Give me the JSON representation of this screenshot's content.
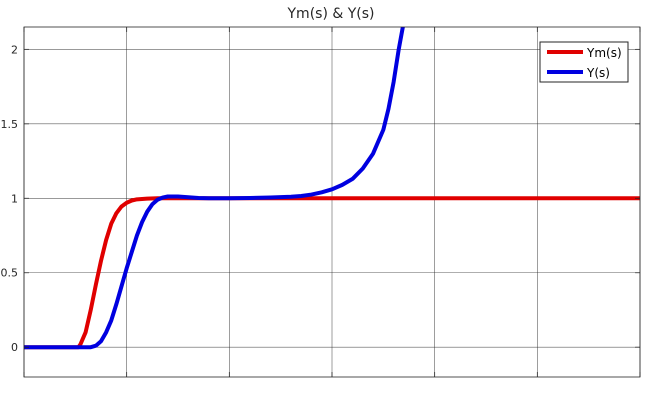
{
  "chart_data": {
    "type": "line",
    "title": "Ym(s) & Y(s)",
    "xlabel": "",
    "ylabel": "",
    "xlim": [
      0,
      6
    ],
    "ylim": [
      -0.2,
      2.15
    ],
    "grid": true,
    "legend_position": "top-right",
    "xticks": [
      0,
      1,
      2,
      3,
      4,
      5,
      6
    ],
    "yticks": [
      0,
      0.5,
      1,
      1.5,
      2
    ],
    "ytick_labels": [
      "0",
      "0.5",
      "1",
      "1.5",
      "2"
    ],
    "series": [
      {
        "name": "Ym(s)",
        "color": "#e00000",
        "points": [
          [
            0.0,
            0.0
          ],
          [
            0.3,
            0.0
          ],
          [
            0.53,
            0.0
          ],
          [
            0.55,
            0.02
          ],
          [
            0.6,
            0.1
          ],
          [
            0.65,
            0.25
          ],
          [
            0.7,
            0.42
          ],
          [
            0.75,
            0.58
          ],
          [
            0.8,
            0.72
          ],
          [
            0.85,
            0.83
          ],
          [
            0.9,
            0.9
          ],
          [
            0.95,
            0.945
          ],
          [
            1.0,
            0.97
          ],
          [
            1.05,
            0.985
          ],
          [
            1.1,
            0.993
          ],
          [
            1.2,
            0.998
          ],
          [
            1.3,
            1.0
          ],
          [
            2.0,
            1.0
          ],
          [
            3.0,
            1.0
          ],
          [
            4.0,
            1.0
          ],
          [
            5.0,
            1.0
          ],
          [
            6.0,
            1.0
          ]
        ]
      },
      {
        "name": "Y(s)",
        "color": "#0000e0",
        "points": [
          [
            0.0,
            0.0
          ],
          [
            0.3,
            0.0
          ],
          [
            0.65,
            0.0
          ],
          [
            0.7,
            0.01
          ],
          [
            0.75,
            0.04
          ],
          [
            0.8,
            0.1
          ],
          [
            0.85,
            0.18
          ],
          [
            0.9,
            0.29
          ],
          [
            0.95,
            0.41
          ],
          [
            1.0,
            0.53
          ],
          [
            1.05,
            0.64
          ],
          [
            1.1,
            0.75
          ],
          [
            1.15,
            0.84
          ],
          [
            1.2,
            0.91
          ],
          [
            1.25,
            0.96
          ],
          [
            1.3,
            0.99
          ],
          [
            1.35,
            1.005
          ],
          [
            1.4,
            1.012
          ],
          [
            1.5,
            1.012
          ],
          [
            1.6,
            1.007
          ],
          [
            1.7,
            1.002
          ],
          [
            1.8,
            1.0
          ],
          [
            2.0,
            1.0
          ],
          [
            2.2,
            1.002
          ],
          [
            2.4,
            1.005
          ],
          [
            2.6,
            1.01
          ],
          [
            2.7,
            1.015
          ],
          [
            2.8,
            1.025
          ],
          [
            2.9,
            1.04
          ],
          [
            3.0,
            1.06
          ],
          [
            3.1,
            1.09
          ],
          [
            3.2,
            1.13
          ],
          [
            3.3,
            1.2
          ],
          [
            3.4,
            1.3
          ],
          [
            3.5,
            1.46
          ],
          [
            3.55,
            1.6
          ],
          [
            3.6,
            1.78
          ],
          [
            3.65,
            2.0
          ],
          [
            3.69,
            2.15
          ]
        ]
      }
    ]
  }
}
